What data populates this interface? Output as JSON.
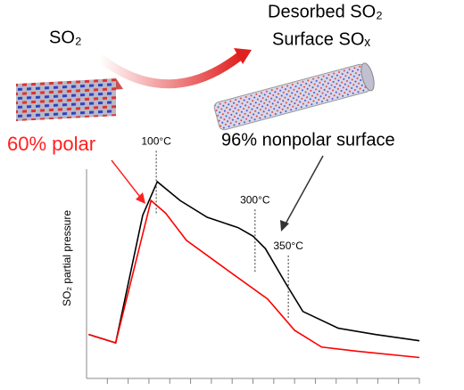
{
  "chart_data": {
    "type": "line",
    "ylabel": "SO₂ partial pressure",
    "texts": {
      "gas": "SO₂",
      "desorbed": "Desorbed SO₂",
      "surface": "Surface SOₓ",
      "polar": "60% polar",
      "nonpolar": "96% nonpolar surface"
    },
    "xlim": [
      0,
      16
    ],
    "ylim": [
      0,
      10
    ],
    "xticks": [
      1,
      2,
      3,
      4,
      5,
      6,
      7,
      8,
      9,
      10,
      11,
      12,
      13,
      14,
      15,
      16
    ],
    "markers": [
      {
        "label": "100°C",
        "x": 3.35,
        "y": 9.6
      },
      {
        "label": "300°C",
        "x": 8.1,
        "y": 6.8
      },
      {
        "label": "350°C",
        "x": 9.7,
        "y": 4.6
      }
    ],
    "series": [
      {
        "color": "#000000",
        "x": [
          0.1,
          1.4,
          2.7,
          3.4,
          4.5,
          5.8,
          7.3,
          8.0,
          8.6,
          9.6,
          10.4,
          12.1,
          13.9,
          16
        ],
        "values": [
          2.1,
          1.7,
          7.8,
          9.4,
          8.5,
          7.7,
          7.2,
          6.8,
          6.2,
          4.5,
          3.2,
          2.4,
          2.1,
          1.8
        ]
      },
      {
        "color": "#ff0000",
        "x": [
          0.1,
          1.4,
          2.3,
          3.1,
          3.8,
          4.8,
          6.6,
          8.7,
          10.0,
          11.3,
          13.0,
          16
        ],
        "values": [
          2.1,
          1.7,
          5.3,
          8.5,
          7.9,
          6.6,
          5.3,
          3.8,
          2.3,
          1.5,
          1.3,
          1.0
        ]
      }
    ]
  }
}
